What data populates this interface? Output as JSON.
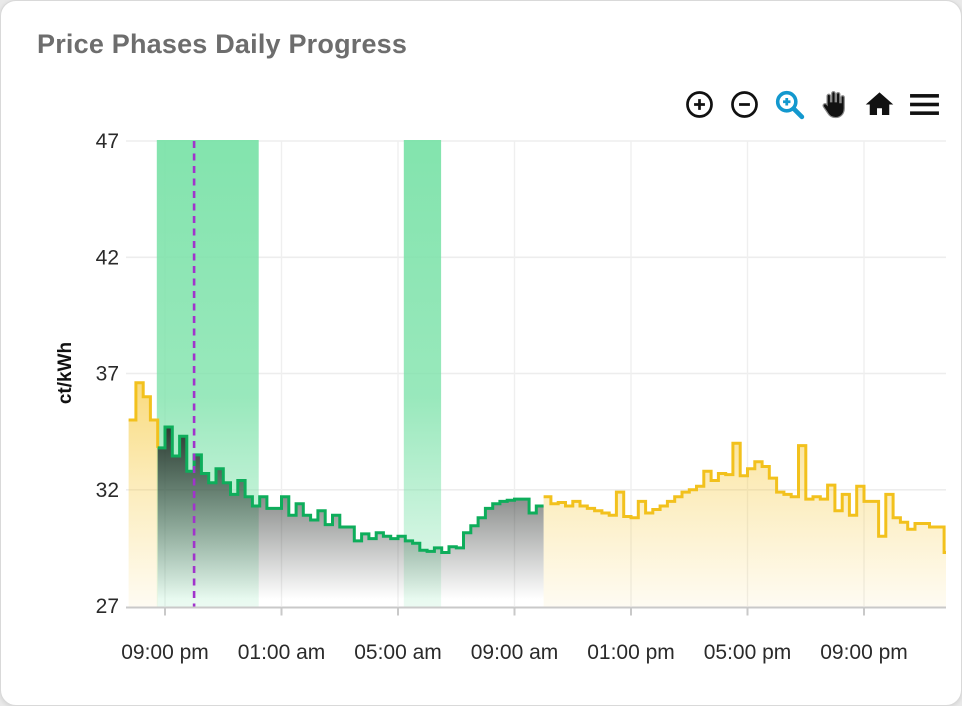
{
  "card": {
    "title": "Price Phases Daily Progress"
  },
  "toolbar": {
    "icon_color": "#111111",
    "active_color": "#1398CE",
    "buttons": [
      {
        "name": "zoom-in"
      },
      {
        "name": "zoom-out"
      },
      {
        "name": "box-zoom",
        "active": true
      },
      {
        "name": "pan"
      },
      {
        "name": "reset-axes-home"
      },
      {
        "name": "menu"
      }
    ]
  },
  "chart_data": {
    "type": "line",
    "subtype": "step-after",
    "ylabel": "ct/kWh",
    "xlabel": "",
    "ylim": [
      27,
      47
    ],
    "y_ticks": [
      27,
      32,
      37,
      42,
      47
    ],
    "x_ticks": [
      {
        "label": "09:00 pm",
        "hour": 0
      },
      {
        "label": "01:00 am",
        "hour": 4
      },
      {
        "label": "05:00 am",
        "hour": 8
      },
      {
        "label": "09:00 am",
        "hour": 12
      },
      {
        "label": "01:00 pm",
        "hour": 16
      },
      {
        "label": "05:00 pm",
        "hour": 20
      },
      {
        "label": "09:00 pm",
        "hour": 24
      }
    ],
    "xlim_hours": [
      -1.34,
      26.82
    ],
    "step_hours": 0.25,
    "grid": true,
    "legend": "none",
    "highlight_bands": [
      {
        "start_hour": -0.28,
        "end_hour": 3.22,
        "color": "#7CE2A9"
      },
      {
        "start_hour": 8.2,
        "end_hour": 9.48,
        "color": "#7CE2A9"
      }
    ],
    "now_line": {
      "hour": 1.0,
      "color": "#A133CC",
      "style": "dashed"
    },
    "series": [
      {
        "name": "price-evening-start",
        "color": "#F2C11D",
        "fill_gradient": "gold",
        "start_hour": -1.25,
        "end_value": 33.8,
        "values": [
          35.0,
          36.6,
          36.0,
          35.0
        ]
      },
      {
        "name": "price-cheap-phase",
        "color": "#0EAD5B",
        "fill_gradient": "dark",
        "start_hour": -0.25,
        "values": [
          33.8,
          34.7,
          33.45,
          34.3,
          32.8,
          33.5,
          32.7,
          32.3,
          32.9,
          32.3,
          31.8,
          32.4,
          31.7,
          31.3,
          31.7,
          31.2,
          31.2,
          31.7,
          30.9,
          31.4,
          30.9,
          30.7,
          31.1,
          30.5,
          30.9,
          30.4,
          30.4,
          29.8,
          30.1,
          29.9,
          30.15,
          30.0,
          29.9,
          30.0,
          29.8,
          29.7,
          29.4,
          29.35,
          29.5,
          29.3,
          29.55,
          29.5,
          30.15,
          30.45,
          30.8,
          31.2,
          31.4,
          31.5,
          31.55,
          31.6,
          31.6,
          31.0,
          31.3
        ]
      },
      {
        "name": "price-daytime",
        "color": "#F2C11D",
        "fill_gradient": "gold",
        "start_hour": 13.0,
        "values": [
          31.7,
          31.4,
          31.45,
          31.3,
          31.5,
          31.3,
          31.2,
          31.1,
          31.0,
          30.9,
          31.9,
          30.85,
          30.8,
          31.5,
          31.0,
          31.15,
          31.3,
          31.5,
          31.7,
          31.9,
          32.0,
          32.15,
          32.8,
          32.4,
          32.7,
          32.65,
          34.0,
          32.6,
          32.9,
          33.2,
          33.0,
          32.5,
          31.9,
          31.8,
          31.7,
          33.9,
          31.6,
          31.7,
          31.6,
          32.2,
          31.1,
          31.8,
          30.9,
          32.15,
          31.5,
          31.5,
          30.0,
          31.8,
          30.8,
          30.6,
          30.3,
          30.55,
          30.55,
          30.4,
          30.4,
          29.3
        ]
      }
    ]
  }
}
